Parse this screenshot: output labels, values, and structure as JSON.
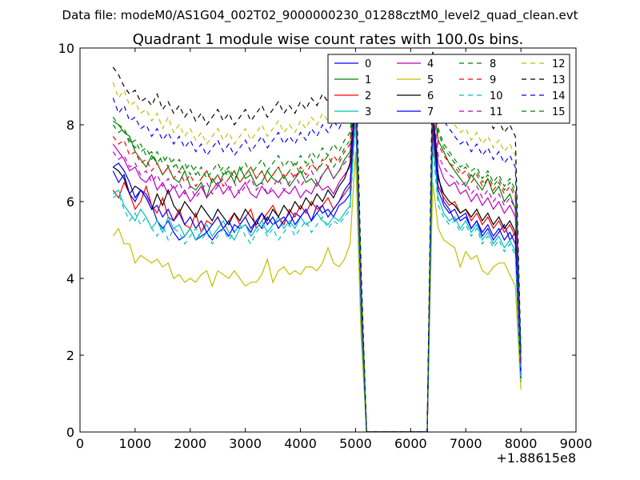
{
  "figure": {
    "suptitle": "Data file: modeM0/AS1G04_002T02_9000000230_01288cztM0_level2_quad_clean.evt"
  },
  "chart_data": {
    "type": "line",
    "title": "Quadrant 1 module wise count rates with 100.0s bins.",
    "x_offset_label": "+1.88615e8",
    "xlim": [
      0,
      9000
    ],
    "ylim": [
      0,
      10
    ],
    "xticks": [
      0,
      1000,
      2000,
      3000,
      4000,
      5000,
      6000,
      7000,
      8000,
      9000
    ],
    "yticks": [
      0,
      2,
      4,
      6,
      8,
      10
    ],
    "legend_position": "top-right",
    "legend_columns": 4,
    "x": [
      600,
      700,
      800,
      900,
      1000,
      1100,
      1200,
      1300,
      1400,
      1500,
      1600,
      1700,
      1800,
      1900,
      2000,
      2100,
      2200,
      2300,
      2400,
      2500,
      2600,
      2700,
      2800,
      2900,
      3000,
      3100,
      3200,
      3300,
      3400,
      3500,
      3600,
      3700,
      3800,
      3900,
      4000,
      4100,
      4200,
      4300,
      4400,
      4500,
      4600,
      4700,
      4800,
      4900,
      5000,
      5100,
      5200,
      6300,
      6400,
      6500,
      6600,
      6700,
      6800,
      6900,
      7000,
      7100,
      7200,
      7300,
      7400,
      7500,
      7600,
      7700,
      7800,
      7900,
      8000
    ],
    "series": [
      {
        "name": "0",
        "color": "#0000ff",
        "dash": false,
        "values": [
          6.9,
          7.0,
          6.8,
          6.5,
          6.1,
          6.3,
          6.2,
          5.9,
          5.5,
          5.3,
          5.5,
          5.2,
          5.0,
          5.1,
          5.3,
          5.0,
          5.1,
          5.2,
          5.0,
          5.2,
          5.3,
          5.1,
          5.4,
          5.3,
          5.4,
          5.2,
          5.5,
          5.3,
          5.6,
          5.4,
          5.5,
          5.6,
          5.4,
          5.7,
          5.6,
          5.8,
          5.5,
          5.9,
          5.7,
          5.8,
          5.6,
          5.9,
          6.0,
          6.2,
          8.7,
          3.2,
          0,
          0,
          8.0,
          6.7,
          6.0,
          5.8,
          5.5,
          5.6,
          5.7,
          5.3,
          5.5,
          5.1,
          5.3,
          5.0,
          5.2,
          5.4,
          5.0,
          5.2,
          1.5
        ]
      },
      {
        "name": "1",
        "color": "#008000",
        "dash": false,
        "values": [
          8.1,
          8.0,
          7.8,
          7.7,
          7.3,
          7.1,
          6.9,
          7.2,
          7.0,
          6.7,
          6.9,
          6.6,
          6.5,
          6.8,
          6.4,
          6.3,
          6.5,
          6.1,
          6.6,
          6.4,
          6.7,
          6.8,
          6.5,
          6.9,
          6.6,
          6.7,
          6.4,
          6.5,
          6.8,
          6.6,
          6.5,
          6.7,
          6.4,
          6.6,
          6.8,
          6.5,
          6.6,
          6.4,
          6.7,
          6.9,
          6.6,
          6.8,
          7.1,
          7.3,
          8.9,
          3.8,
          0,
          0,
          8.7,
          7.6,
          7.3,
          7.0,
          6.8,
          6.6,
          6.4,
          6.7,
          6.5,
          6.3,
          6.6,
          6.2,
          6.4,
          6.0,
          6.2,
          5.8,
          1.8
        ]
      },
      {
        "name": "2",
        "color": "#ff0000",
        "dash": false,
        "values": [
          6.3,
          6.1,
          6.5,
          6.2,
          5.8,
          6.0,
          6.4,
          5.9,
          5.7,
          6.1,
          5.6,
          5.5,
          5.8,
          5.4,
          5.3,
          5.7,
          5.2,
          5.5,
          5.4,
          5.6,
          5.3,
          5.5,
          5.7,
          5.4,
          5.6,
          5.8,
          5.3,
          5.5,
          5.7,
          5.9,
          5.6,
          5.4,
          5.8,
          5.6,
          5.9,
          5.7,
          6.0,
          5.8,
          5.9,
          6.1,
          5.8,
          6.0,
          6.2,
          6.4,
          8.5,
          3.1,
          0,
          0,
          7.8,
          6.4,
          6.1,
          5.9,
          6.0,
          5.7,
          5.8,
          5.5,
          5.7,
          5.4,
          5.6,
          5.3,
          5.5,
          5.2,
          5.4,
          5.1,
          1.4
        ]
      },
      {
        "name": "3",
        "color": "#00bfbf",
        "dash": false,
        "values": [
          6.2,
          6.3,
          5.9,
          5.7,
          5.5,
          5.8,
          5.6,
          5.3,
          5.5,
          5.2,
          5.6,
          5.3,
          5.4,
          5.1,
          5.3,
          5.0,
          5.2,
          5.4,
          5.1,
          5.3,
          5.5,
          5.2,
          5.0,
          5.3,
          5.4,
          5.1,
          5.3,
          5.5,
          5.2,
          5.4,
          5.6,
          5.3,
          5.5,
          5.3,
          5.6,
          5.4,
          5.5,
          5.7,
          5.5,
          5.4,
          5.6,
          5.5,
          5.7,
          5.9,
          8.3,
          3.0,
          0,
          0,
          7.6,
          6.1,
          5.7,
          5.5,
          5.6,
          5.3,
          5.5,
          5.2,
          5.4,
          5.0,
          5.2,
          4.9,
          5.1,
          4.8,
          5.0,
          4.7,
          1.3
        ]
      },
      {
        "name": "4",
        "color": "#bf00bf",
        "dash": false,
        "values": [
          7.5,
          7.3,
          7.1,
          6.8,
          6.9,
          6.6,
          6.5,
          6.7,
          6.3,
          6.5,
          6.2,
          6.4,
          6.1,
          6.3,
          6.0,
          6.2,
          6.4,
          6.1,
          6.3,
          6.5,
          6.2,
          6.4,
          6.1,
          6.3,
          6.5,
          6.2,
          6.1,
          6.4,
          6.2,
          6.3,
          6.1,
          6.3,
          6.2,
          6.4,
          6.1,
          6.3,
          6.2,
          6.5,
          6.3,
          6.4,
          6.2,
          6.5,
          6.7,
          6.9,
          8.6,
          3.5,
          0,
          0,
          8.3,
          7.0,
          6.6,
          6.4,
          6.5,
          6.2,
          6.3,
          6.0,
          6.2,
          5.9,
          6.1,
          5.8,
          6.0,
          5.7,
          5.9,
          5.6,
          1.6
        ]
      },
      {
        "name": "5",
        "color": "#bfbf00",
        "dash": false,
        "values": [
          5.1,
          5.3,
          4.9,
          4.9,
          4.4,
          4.6,
          4.5,
          4.4,
          4.5,
          4.3,
          4.4,
          4.0,
          4.1,
          3.9,
          4.0,
          3.9,
          4.1,
          4.2,
          3.8,
          4.2,
          4.1,
          4.0,
          4.2,
          4.0,
          3.8,
          3.9,
          3.9,
          4.1,
          4.5,
          3.9,
          4.2,
          4.3,
          4.1,
          4.2,
          4.1,
          4.3,
          4.3,
          4.2,
          4.4,
          4.8,
          4.4,
          4.3,
          4.5,
          4.9,
          7.3,
          2.5,
          0,
          0,
          6.5,
          5.3,
          5.0,
          4.9,
          4.8,
          4.3,
          4.7,
          4.5,
          4.6,
          4.2,
          4.1,
          4.3,
          4.4,
          4.4,
          4.1,
          3.8,
          1.1
        ]
      },
      {
        "name": "6",
        "color": "#000000",
        "dash": false,
        "values": [
          6.9,
          6.8,
          6.6,
          6.2,
          6.4,
          6.3,
          6.1,
          5.8,
          6.2,
          5.9,
          6.3,
          5.9,
          5.7,
          6.0,
          5.8,
          5.6,
          5.9,
          5.7,
          5.5,
          5.8,
          5.6,
          5.4,
          5.7,
          5.5,
          5.8,
          5.6,
          5.4,
          5.7,
          5.5,
          5.8,
          5.6,
          5.9,
          5.7,
          6.0,
          5.8,
          6.1,
          5.9,
          6.2,
          6.0,
          6.3,
          6.1,
          6.4,
          6.6,
          7.0,
          8.9,
          3.4,
          0,
          0,
          8.5,
          6.6,
          6.2,
          6.0,
          5.9,
          5.7,
          5.8,
          5.6,
          5.8,
          5.5,
          5.7,
          5.4,
          5.6,
          5.3,
          5.5,
          5.2,
          1.5
        ]
      },
      {
        "name": "7",
        "color": "#0000ff",
        "dash": false,
        "values": [
          6.8,
          6.5,
          6.7,
          6.2,
          6.0,
          6.3,
          6.1,
          5.8,
          5.9,
          5.6,
          5.8,
          5.5,
          5.7,
          5.4,
          5.6,
          5.3,
          5.5,
          5.2,
          5.4,
          5.6,
          5.3,
          5.5,
          5.2,
          5.4,
          5.6,
          5.3,
          5.5,
          5.7,
          5.4,
          5.6,
          5.3,
          5.5,
          5.7,
          5.4,
          5.6,
          5.8,
          5.5,
          5.7,
          5.9,
          5.6,
          5.8,
          6.0,
          6.3,
          6.5,
          8.6,
          3.3,
          0,
          0,
          8.1,
          6.3,
          5.9,
          5.7,
          5.8,
          5.5,
          5.6,
          5.3,
          5.5,
          5.2,
          5.4,
          5.1,
          5.3,
          5.0,
          5.2,
          4.9,
          1.4
        ]
      },
      {
        "name": "8",
        "color": "#008000",
        "dash": true,
        "values": [
          8.2,
          8.0,
          7.9,
          7.6,
          7.4,
          7.5,
          7.2,
          7.3,
          7.0,
          7.2,
          6.9,
          7.1,
          6.8,
          7.0,
          6.7,
          6.9,
          6.6,
          6.8,
          6.5,
          6.7,
          6.9,
          6.6,
          6.8,
          6.5,
          6.7,
          6.9,
          6.6,
          6.8,
          6.5,
          6.7,
          6.9,
          6.6,
          6.8,
          7.0,
          6.7,
          6.9,
          7.1,
          6.8,
          7.0,
          7.2,
          6.9,
          7.1,
          7.4,
          7.6,
          9.1,
          3.9,
          0,
          0,
          8.9,
          7.9,
          7.5,
          7.3,
          7.1,
          6.9,
          7.0,
          6.8,
          6.9,
          6.6,
          6.8,
          6.5,
          6.7,
          6.4,
          6.6,
          6.3,
          1.9
        ]
      },
      {
        "name": "9",
        "color": "#ff0000",
        "dash": true,
        "values": [
          7.7,
          7.5,
          7.6,
          7.2,
          7.3,
          7.0,
          7.1,
          6.8,
          7.0,
          6.7,
          6.9,
          6.6,
          6.8,
          6.5,
          6.7,
          6.4,
          6.6,
          6.8,
          6.5,
          6.7,
          6.4,
          6.6,
          6.8,
          6.5,
          6.7,
          6.9,
          6.6,
          6.8,
          6.5,
          6.7,
          6.9,
          6.6,
          6.8,
          6.6,
          6.9,
          6.7,
          7.0,
          6.8,
          7.1,
          6.9,
          7.2,
          7.0,
          7.3,
          7.5,
          9.0,
          3.7,
          0,
          0,
          8.7,
          7.5,
          7.2,
          7.0,
          6.9,
          6.7,
          6.8,
          6.5,
          6.7,
          6.4,
          6.6,
          6.3,
          6.5,
          6.2,
          6.4,
          6.1,
          1.8
        ]
      },
      {
        "name": "10",
        "color": "#00bfbf",
        "dash": true,
        "values": [
          6.1,
          6.2,
          5.8,
          5.5,
          5.7,
          5.4,
          5.6,
          5.3,
          5.1,
          5.4,
          5.0,
          5.3,
          5.2,
          4.9,
          5.1,
          5.3,
          5.0,
          5.2,
          4.9,
          5.1,
          5.3,
          5.0,
          5.2,
          5.4,
          5.1,
          4.9,
          5.2,
          5.4,
          5.1,
          5.3,
          5.0,
          5.2,
          5.4,
          5.1,
          5.3,
          5.5,
          5.2,
          5.4,
          5.6,
          5.3,
          5.5,
          5.4,
          5.6,
          5.8,
          8.1,
          2.9,
          0,
          0,
          7.4,
          5.9,
          5.6,
          5.4,
          5.5,
          5.2,
          5.4,
          5.1,
          5.3,
          4.9,
          5.1,
          4.8,
          5.0,
          4.7,
          4.9,
          4.6,
          1.3
        ]
      },
      {
        "name": "11",
        "color": "#bf00bf",
        "dash": true,
        "values": [
          7.3,
          7.1,
          7.2,
          6.9,
          7.0,
          6.7,
          6.8,
          6.5,
          6.7,
          6.4,
          6.6,
          6.3,
          6.5,
          6.2,
          6.4,
          6.1,
          6.3,
          6.5,
          6.2,
          6.4,
          6.6,
          6.3,
          6.5,
          6.2,
          6.4,
          6.6,
          6.3,
          6.5,
          6.2,
          6.4,
          6.6,
          6.3,
          6.5,
          6.7,
          6.4,
          6.6,
          6.8,
          6.5,
          6.7,
          6.9,
          6.6,
          6.8,
          7.0,
          7.2,
          8.8,
          3.6,
          0,
          0,
          8.5,
          7.2,
          6.9,
          6.7,
          6.6,
          6.4,
          6.5,
          6.2,
          6.4,
          6.1,
          6.3,
          6.0,
          6.2,
          5.9,
          6.1,
          5.8,
          1.7
        ]
      },
      {
        "name": "12",
        "color": "#bfbf00",
        "dash": true,
        "values": [
          9.1,
          8.7,
          8.9,
          8.5,
          8.6,
          8.3,
          8.4,
          8.1,
          8.3,
          7.9,
          8.2,
          7.8,
          8.0,
          7.7,
          7.9,
          7.6,
          7.8,
          7.5,
          7.7,
          7.9,
          7.6,
          7.8,
          7.5,
          7.7,
          7.9,
          7.6,
          7.8,
          8.0,
          7.7,
          7.9,
          8.1,
          7.8,
          8.0,
          7.8,
          8.1,
          7.9,
          8.2,
          8.0,
          8.3,
          8.1,
          8.4,
          8.2,
          8.5,
          8.7,
          9.5,
          4.2,
          0,
          0,
          9.6,
          8.9,
          8.5,
          8.2,
          8.0,
          7.8,
          7.9,
          7.6,
          7.8,
          7.5,
          7.7,
          7.4,
          7.6,
          7.3,
          7.5,
          7.2,
          2.0
        ]
      },
      {
        "name": "13",
        "color": "#000000",
        "dash": true,
        "values": [
          9.5,
          9.3,
          9.0,
          8.8,
          8.9,
          8.6,
          8.7,
          8.5,
          8.8,
          8.4,
          8.6,
          8.3,
          8.5,
          8.2,
          8.4,
          8.1,
          8.3,
          8.0,
          8.2,
          8.4,
          8.1,
          8.3,
          8.0,
          8.2,
          8.4,
          8.1,
          8.3,
          8.5,
          8.2,
          8.4,
          8.6,
          8.3,
          8.5,
          8.3,
          8.6,
          8.4,
          8.7,
          8.5,
          8.8,
          8.6,
          8.9,
          8.7,
          9.0,
          9.2,
          9.8,
          4.3,
          0,
          0,
          9.9,
          9.4,
          9.0,
          8.7,
          8.5,
          8.3,
          8.4,
          8.1,
          8.3,
          8.0,
          8.2,
          7.9,
          8.1,
          7.8,
          8.0,
          7.7,
          2.1
        ]
      },
      {
        "name": "14",
        "color": "#0000ff",
        "dash": true,
        "values": [
          8.7,
          8.3,
          8.5,
          8.1,
          8.2,
          7.9,
          8.0,
          7.7,
          7.9,
          7.6,
          7.8,
          7.5,
          7.7,
          7.4,
          7.6,
          7.3,
          7.5,
          7.2,
          7.4,
          7.6,
          7.3,
          7.5,
          7.2,
          7.4,
          7.6,
          7.3,
          7.5,
          7.7,
          7.4,
          7.6,
          7.8,
          7.5,
          7.7,
          7.5,
          7.8,
          7.6,
          7.9,
          7.7,
          8.0,
          7.8,
          8.1,
          7.9,
          8.2,
          8.4,
          9.3,
          4.0,
          0,
          0,
          9.4,
          8.5,
          8.1,
          7.9,
          7.7,
          7.5,
          7.6,
          7.3,
          7.5,
          7.2,
          7.4,
          7.1,
          7.3,
          7.0,
          7.2,
          6.9,
          1.9
        ]
      },
      {
        "name": "15",
        "color": "#008000",
        "dash": true,
        "values": [
          8.0,
          7.8,
          7.9,
          7.5,
          7.6,
          7.3,
          7.4,
          7.1,
          7.3,
          7.0,
          7.2,
          6.9,
          7.1,
          6.8,
          7.0,
          6.7,
          6.9,
          6.6,
          6.8,
          7.0,
          6.7,
          6.9,
          6.6,
          6.8,
          7.0,
          6.7,
          6.9,
          7.1,
          6.8,
          7.0,
          7.2,
          6.9,
          7.1,
          6.9,
          7.2,
          7.0,
          7.3,
          7.1,
          7.4,
          7.2,
          7.5,
          7.3,
          7.6,
          7.8,
          9.2,
          3.8,
          0,
          0,
          8.8,
          7.8,
          7.4,
          7.2,
          7.0,
          6.8,
          6.9,
          6.6,
          6.8,
          6.5,
          6.7,
          6.4,
          6.6,
          6.3,
          6.5,
          6.2,
          1.8
        ]
      }
    ]
  }
}
